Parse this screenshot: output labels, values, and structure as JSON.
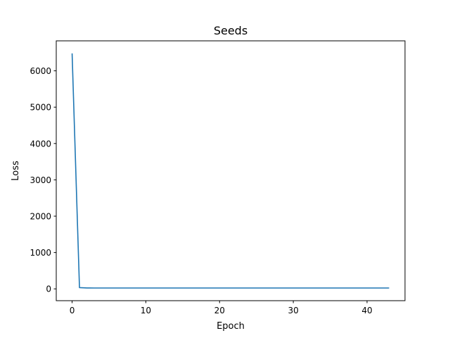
{
  "chart_data": {
    "type": "line",
    "title": "Seeds",
    "xlabel": "Epoch",
    "ylabel": "Loss",
    "xlim": [
      -2.15,
      45.15
    ],
    "ylim": [
      -325,
      6825
    ],
    "xticks": [
      0,
      10,
      20,
      30,
      40
    ],
    "yticks": [
      0,
      1000,
      2000,
      3000,
      4000,
      5000,
      6000
    ],
    "grid": false,
    "legend": "none",
    "colors": {
      "series": "#1f77b4"
    },
    "series": [
      {
        "x": [
          0,
          1,
          2,
          3,
          4,
          5,
          6,
          7,
          8,
          9,
          10,
          11,
          12,
          13,
          14,
          15,
          16,
          17,
          18,
          19,
          20,
          21,
          22,
          23,
          24,
          25,
          26,
          27,
          28,
          29,
          30,
          31,
          32,
          33,
          34,
          35,
          36,
          37,
          38,
          39,
          40,
          41,
          42,
          43
        ],
        "values": [
          6480,
          35,
          25,
          24,
          24,
          24,
          24,
          24,
          24,
          24,
          24,
          24,
          24,
          24,
          24,
          24,
          24,
          24,
          24,
          24,
          24,
          24,
          24,
          24,
          24,
          24,
          24,
          24,
          24,
          24,
          24,
          24,
          24,
          24,
          24,
          24,
          24,
          24,
          24,
          24,
          24,
          24,
          24,
          24
        ]
      }
    ]
  }
}
